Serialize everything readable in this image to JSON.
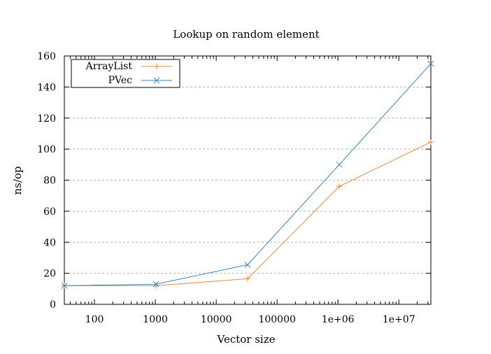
{
  "chart_data": {
    "type": "line",
    "title": "Lookup on random element",
    "xlabel": "Vector size",
    "ylabel": "ns/op",
    "xscale": "log",
    "xlim": [
      32,
      33554432
    ],
    "ylim": [
      0,
      160
    ],
    "xticks": [
      {
        "value": 100,
        "label": "100"
      },
      {
        "value": 1000,
        "label": "1000"
      },
      {
        "value": 10000,
        "label": "10000"
      },
      {
        "value": 100000,
        "label": "100000"
      },
      {
        "value": 1000000,
        "label": "1e+06"
      },
      {
        "value": 10000000,
        "label": "1e+07"
      }
    ],
    "yticks": [
      {
        "value": 0,
        "label": "0"
      },
      {
        "value": 20,
        "label": "20"
      },
      {
        "value": 40,
        "label": "40"
      },
      {
        "value": 60,
        "label": "60"
      },
      {
        "value": 80,
        "label": "80"
      },
      {
        "value": 100,
        "label": "100"
      },
      {
        "value": 120,
        "label": "120"
      },
      {
        "value": 140,
        "label": "140"
      },
      {
        "value": 160,
        "label": "160"
      }
    ],
    "grid": {
      "horizontal": true,
      "vertical": false,
      "style": "dashed"
    },
    "legend": {
      "position": "top-left",
      "boxed": true
    },
    "series": [
      {
        "name": "ArrayList",
        "color": "#e88a3a",
        "marker": "plus",
        "x": [
          32,
          1024,
          32768,
          1048576,
          33554432
        ],
        "y": [
          12,
          12,
          16.5,
          76,
          104.5
        ]
      },
      {
        "name": "PVec",
        "color": "#3a86c8",
        "marker": "cross",
        "x": [
          32,
          1024,
          32768,
          1048576,
          33554432
        ],
        "y": [
          12,
          13,
          25.5,
          90,
          155
        ]
      }
    ]
  }
}
